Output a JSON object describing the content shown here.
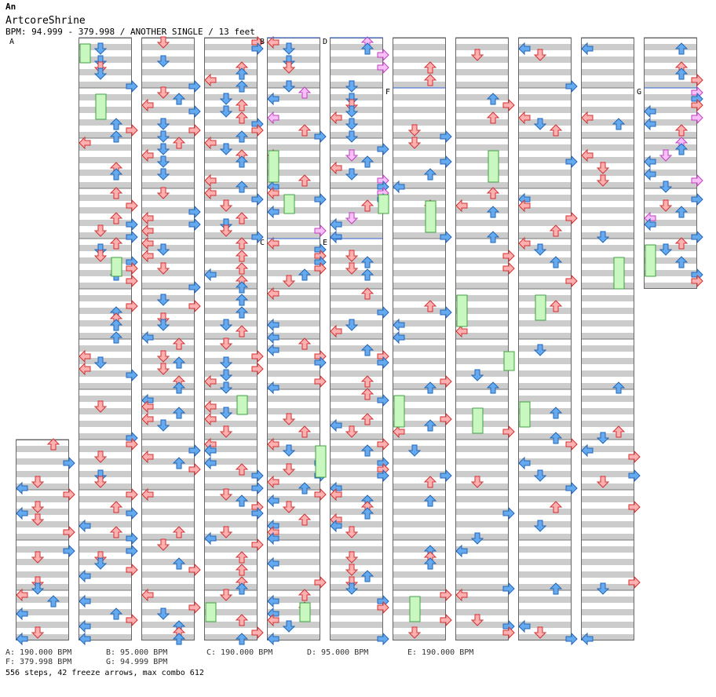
{
  "header": {
    "artist": "An",
    "title": "ArtcoreShrine",
    "meta": "BPM: 94.999 - 379.998 / ANOTHER SINGLE / 13 feet"
  },
  "colors": {
    "red_arrow": "#ffb0b0",
    "red_edge": "#d03030",
    "blue_arrow": "#66aaee",
    "blue_edge": "#2266bb",
    "pink_arrow": "#f8c0f8",
    "pink_edge": "#c040c0",
    "freeze": "#c8f8c0",
    "freeze_edge": "#40a040",
    "stripe": "#cccccc",
    "bpm_line": "#3366cc"
  },
  "sections": [
    {
      "label": "A",
      "column": 0
    },
    {
      "label": "B",
      "column": 4
    },
    {
      "label": "C",
      "column": 4
    },
    {
      "label": "D",
      "column": 5
    },
    {
      "label": "E",
      "column": 5
    },
    {
      "label": "F",
      "column": 6
    },
    {
      "label": "G",
      "column": 10
    }
  ],
  "bpm_legend": [
    {
      "text": "A: 190.000 BPM"
    },
    {
      "text": "B: 95.000 BPM"
    },
    {
      "text": "C: 190.000 BPM"
    },
    {
      "text": "D: 95.000 BPM"
    },
    {
      "text": "E: 190.000 BPM"
    },
    {
      "text": "F: 379.998 BPM"
    },
    {
      "text": "G: 94.999 BPM"
    }
  ],
  "stats": "556 steps, 42 freeze arrows, max combo 612"
}
